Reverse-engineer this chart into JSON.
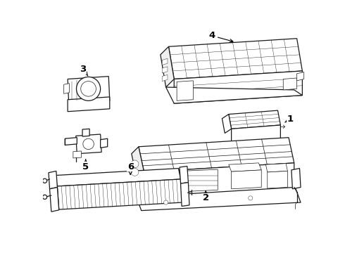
{
  "bg_color": "#ffffff",
  "line_color": "#1a1a1a",
  "label_color": "#000000",
  "lw_main": 0.9,
  "lw_detail": 0.5,
  "lw_thin": 0.3
}
